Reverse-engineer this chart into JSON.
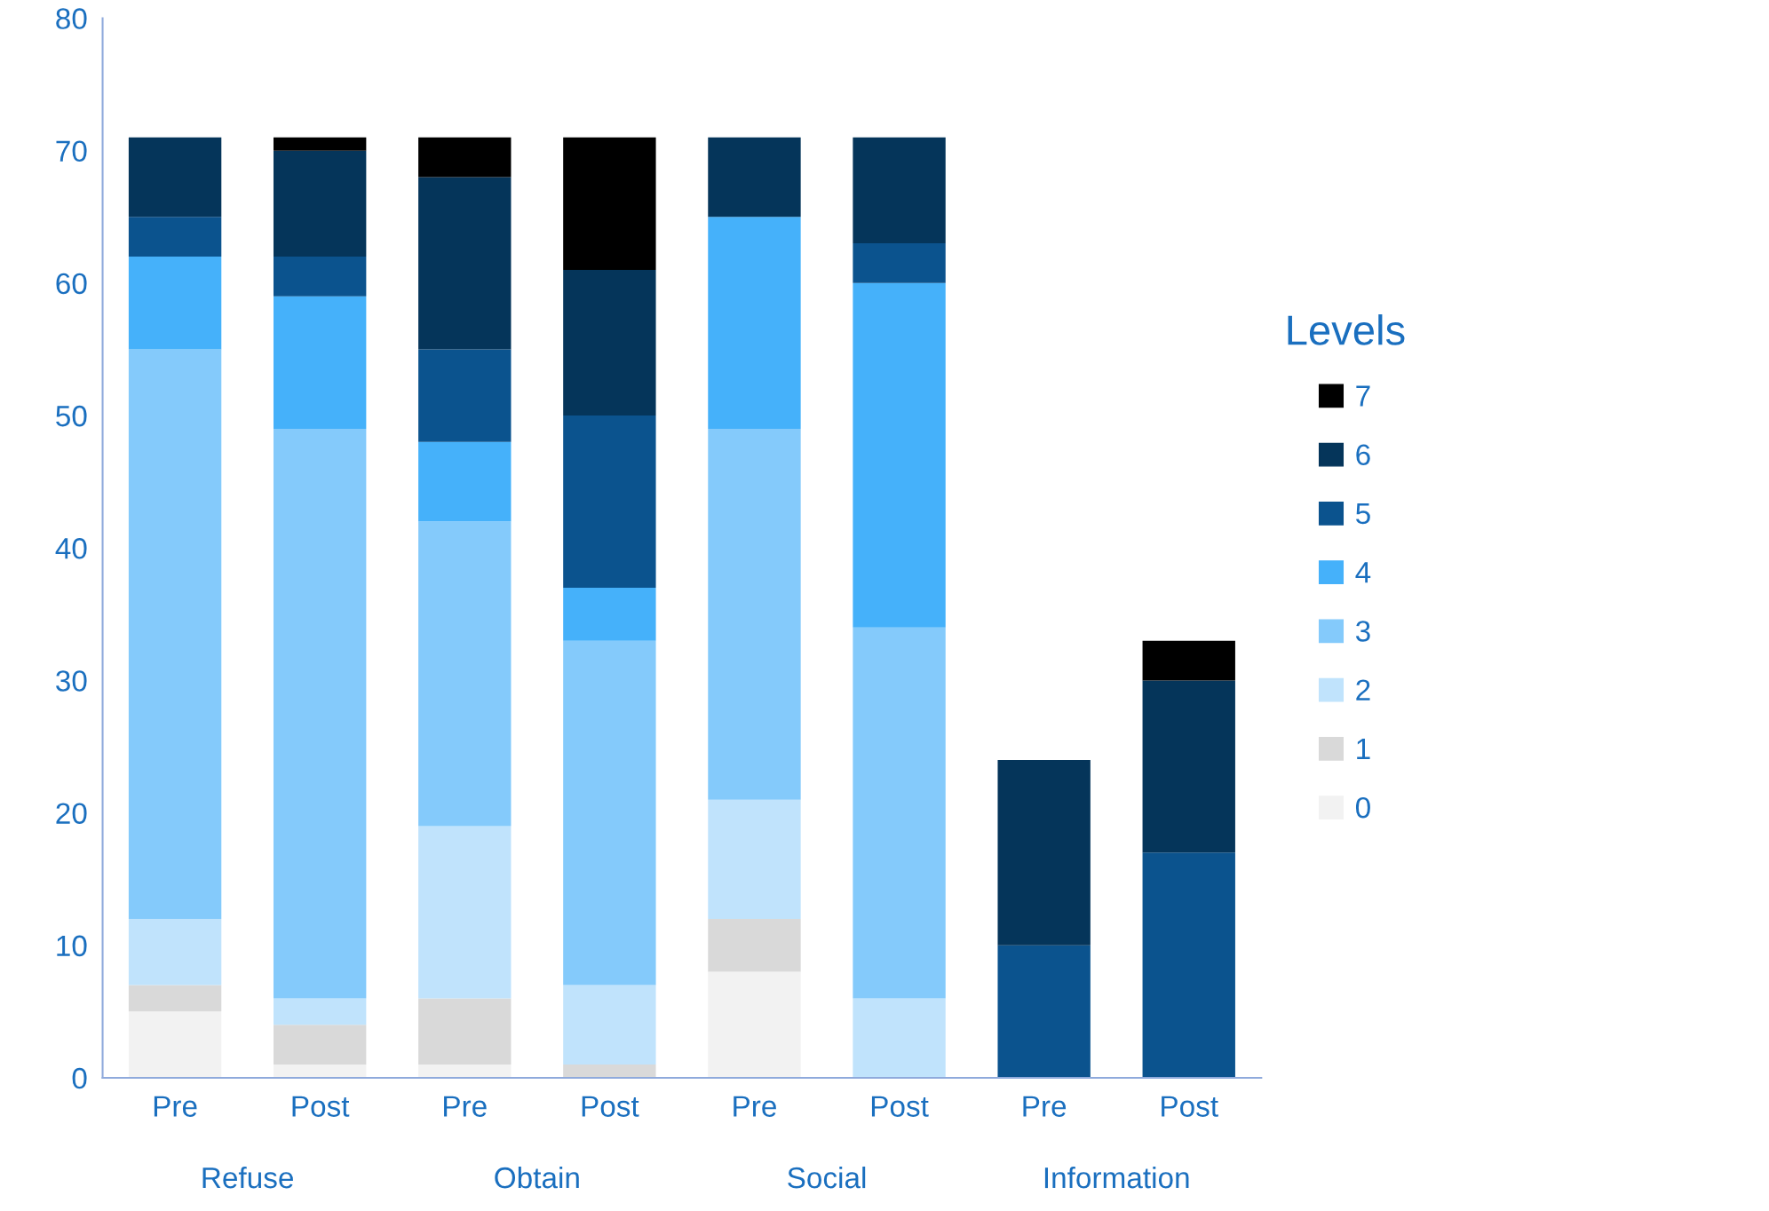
{
  "chart_data": {
    "type": "bar",
    "stacked": true,
    "legend_title": "Levels",
    "legend": "right",
    "grid": false,
    "categories": [
      "Pre",
      "Post",
      "Pre",
      "Post",
      "Pre",
      "Post",
      "Pre",
      "Post"
    ],
    "annotations": [
      "Refuse",
      "Obtain",
      "Social",
      "Information"
    ],
    "ylim": [
      0,
      80
    ],
    "yticks": [
      0,
      10,
      20,
      30,
      40,
      50,
      60,
      70,
      80
    ],
    "series": [
      {
        "name": "0",
        "color": "#f2f2f2",
        "values": [
          5,
          1,
          1,
          0,
          8,
          0,
          0,
          0
        ]
      },
      {
        "name": "1",
        "color": "#d9d9d9",
        "values": [
          2,
          3,
          5,
          1,
          4,
          0,
          0,
          0
        ]
      },
      {
        "name": "2",
        "color": "#c0e3fc",
        "values": [
          5,
          2,
          13,
          6,
          9,
          6,
          0,
          0
        ]
      },
      {
        "name": "3",
        "color": "#84cafb",
        "values": [
          43,
          43,
          23,
          26,
          28,
          28,
          0,
          0
        ]
      },
      {
        "name": "4",
        "color": "#45b1fa",
        "values": [
          7,
          10,
          6,
          4,
          16,
          26,
          0,
          0
        ]
      },
      {
        "name": "5",
        "color": "#0b538e",
        "values": [
          3,
          3,
          7,
          13,
          0,
          3,
          10,
          17
        ]
      },
      {
        "name": "6",
        "color": "#05355a",
        "values": [
          6,
          8,
          13,
          11,
          6,
          8,
          14,
          13
        ]
      },
      {
        "name": "7",
        "color": "#000000",
        "values": [
          0,
          1,
          3,
          10,
          0,
          0,
          0,
          3
        ]
      }
    ]
  }
}
